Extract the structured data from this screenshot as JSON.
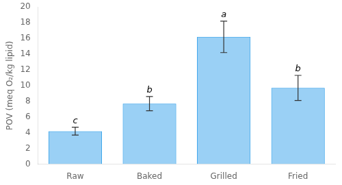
{
  "chart_data": {
    "type": "bar",
    "categories": [
      "Raw",
      "Baked",
      "Grilled",
      "Fried"
    ],
    "values": [
      4.2,
      7.7,
      16.2,
      9.7
    ],
    "errors": [
      0.5,
      0.9,
      2.0,
      1.6
    ],
    "annotations": [
      "c",
      "b",
      "a",
      "b"
    ],
    "ylabel": "POV (meq O₂/kg lipid)",
    "ylim": [
      0,
      20
    ],
    "yticks": [
      0,
      2,
      4,
      6,
      8,
      10,
      12,
      14,
      16,
      18,
      20
    ],
    "grid": false
  }
}
